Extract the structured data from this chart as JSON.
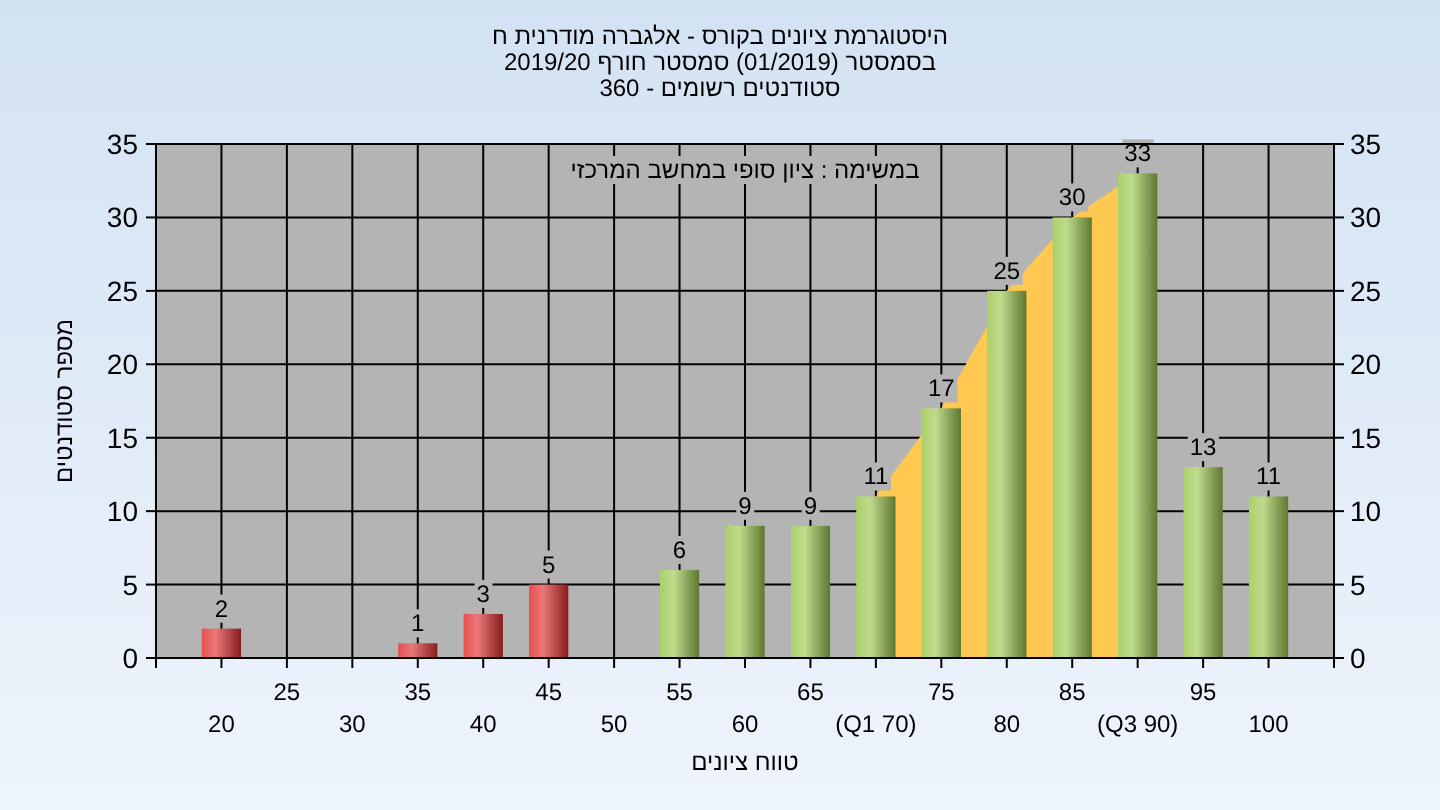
{
  "chart_data": {
    "type": "bar",
    "title": "היסטוגרמת ציונים בקורס - אלגברה מודרנית ח",
    "subtitle": "בסמסטר  (01/2019)  סמסטר חורף 2019/20\nסטודנטים רשומים - 360",
    "xlabel": "טווח ציונים",
    "ylabel": "מספר סטודנטים",
    "annotations": [
      "במשימה : ציון סופי במחשב המרכזי"
    ],
    "categories": [
      "20",
      "25",
      "30",
      "35",
      "40",
      "45",
      "50",
      "55",
      "60",
      "65",
      "(Q1 70)",
      "75",
      "80",
      "85",
      "(Q3 90)",
      "95",
      "100"
    ],
    "series": [
      {
        "type": "area",
        "color": "#ffc850",
        "values": [
          null,
          null,
          null,
          null,
          null,
          null,
          null,
          null,
          null,
          null,
          11,
          17,
          25,
          30,
          33,
          null,
          null
        ]
      },
      {
        "colors": [
          "#e03030",
          "#e03030",
          "#e03030",
          "#e03030",
          "#e03030",
          "#e03030",
          "#9cc850",
          "#9cc850",
          "#9cc850",
          "#9cc850",
          "#9cc850",
          "#9cc850",
          "#9cc850",
          "#9cc850",
          "#9cc850",
          "#9cc850",
          "#9cc850"
        ],
        "values": [
          2,
          0,
          0,
          1,
          3,
          5,
          0,
          6,
          9,
          9,
          11,
          17,
          25,
          30,
          33,
          13,
          11
        ],
        "value_labels": [
          "2",
          null,
          null,
          "1",
          "3",
          "5",
          null,
          "6",
          "9",
          "9",
          "11",
          "17",
          "25",
          "30",
          "33",
          "13",
          "11"
        ]
      }
    ],
    "grid": true,
    "ylim": [
      0,
      35
    ],
    "yticks": [
      0,
      5,
      10,
      15,
      20,
      25,
      30,
      35
    ],
    "y2lim": [
      0,
      35
    ],
    "y2ticks": [
      0,
      5,
      10,
      15,
      20,
      25,
      30,
      35
    ]
  }
}
